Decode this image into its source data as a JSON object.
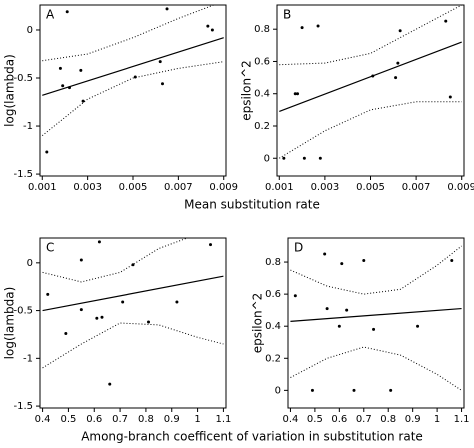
{
  "chart_data": [
    {
      "type": "scatter",
      "panel_label": "A",
      "ylabel": "log(lambda)",
      "xlabel": "Mean substitution rate",
      "x": [
        0.0012,
        0.0018,
        0.0019,
        0.0021,
        0.0022,
        0.0027,
        0.0028,
        0.0051,
        0.0062,
        0.0063,
        0.0065,
        0.0083,
        0.0085
      ],
      "values": [
        -1.27,
        -0.4,
        -0.58,
        0.19,
        -0.6,
        -0.42,
        -0.74,
        -0.49,
        -0.33,
        -0.56,
        0.22,
        0.04,
        0.0
      ],
      "lines": [
        {
          "style": "solid",
          "x": [
            0.001,
            0.009
          ],
          "values": [
            -0.68,
            -0.08
          ]
        },
        {
          "style": "dotted",
          "x": [
            0.001,
            0.003,
            0.005,
            0.007,
            0.009
          ],
          "values": [
            -0.32,
            -0.25,
            -0.08,
            0.12,
            0.3
          ]
        },
        {
          "style": "dotted",
          "x": [
            0.001,
            0.003,
            0.005,
            0.007,
            0.009
          ],
          "values": [
            -1.1,
            -0.72,
            -0.5,
            -0.4,
            -0.33
          ]
        }
      ],
      "xlim": [
        0.0009,
        0.0091
      ],
      "xticks": [
        0.001,
        0.003,
        0.005,
        0.007,
        0.009
      ],
      "ylim": [
        -1.52,
        0.26
      ],
      "yticks": [
        -1.5,
        -1,
        -0.5,
        0
      ]
    },
    {
      "type": "scatter",
      "panel_label": "B",
      "ylabel": "epsilon^2",
      "x": [
        0.0012,
        0.0017,
        0.0018,
        0.002,
        0.0021,
        0.0027,
        0.0028,
        0.0051,
        0.0061,
        0.0062,
        0.0063,
        0.0083,
        0.0085
      ],
      "values": [
        0.0,
        0.4,
        0.4,
        0.81,
        0.0,
        0.82,
        0.0,
        0.51,
        0.5,
        0.59,
        0.79,
        0.85,
        0.38
      ],
      "lines": [
        {
          "style": "solid",
          "x": [
            0.001,
            0.009
          ],
          "values": [
            0.29,
            0.72
          ]
        },
        {
          "style": "dotted",
          "x": [
            0.001,
            0.003,
            0.005,
            0.007,
            0.009
          ],
          "values": [
            0.58,
            0.59,
            0.65,
            0.8,
            0.95
          ]
        },
        {
          "style": "dotted",
          "x": [
            0.001,
            0.003,
            0.005,
            0.007,
            0.009
          ],
          "values": [
            0.0,
            0.17,
            0.3,
            0.35,
            0.35
          ]
        }
      ],
      "xlim": [
        0.0009,
        0.0091
      ],
      "xticks": [
        0.001,
        0.003,
        0.005,
        0.007,
        0.009
      ],
      "ylim": [
        -0.11,
        0.95
      ],
      "yticks": [
        0,
        0.2,
        0.4,
        0.6,
        0.8
      ]
    },
    {
      "type": "scatter",
      "panel_label": "C",
      "ylabel": "log(lambda)",
      "xlabel": "Among-branch coefficent of variation in substitution rate",
      "x": [
        0.42,
        0.49,
        0.55,
        0.55,
        0.61,
        0.62,
        0.63,
        0.66,
        0.71,
        0.75,
        0.81,
        0.92,
        1.05
      ],
      "values": [
        -0.33,
        -0.74,
        0.03,
        -0.49,
        -0.58,
        0.22,
        -0.57,
        -1.27,
        -0.41,
        -0.02,
        -0.62,
        -0.41,
        0.19
      ],
      "lines": [
        {
          "style": "solid",
          "x": [
            0.4,
            1.1
          ],
          "values": [
            -0.5,
            -0.14
          ]
        },
        {
          "style": "dotted",
          "x": [
            0.4,
            0.55,
            0.7,
            0.85,
            1.0
          ],
          "values": [
            -0.1,
            -0.2,
            -0.1,
            0.15,
            0.3
          ]
        },
        {
          "style": "dotted",
          "x": [
            0.4,
            0.55,
            0.7,
            0.85,
            1.0,
            1.1
          ],
          "values": [
            -1.1,
            -0.85,
            -0.63,
            -0.65,
            -0.78,
            -0.85
          ]
        }
      ],
      "xlim": [
        0.39,
        1.11
      ],
      "xticks": [
        0.4,
        0.5,
        0.6,
        0.7,
        0.8,
        0.9,
        1,
        1.1
      ],
      "ylim": [
        -1.52,
        0.26
      ],
      "yticks": [
        -1.5,
        -1,
        -0.5,
        0
      ]
    },
    {
      "type": "scatter",
      "panel_label": "D",
      "ylabel": "epsilon^2",
      "x": [
        0.42,
        0.49,
        0.54,
        0.55,
        0.6,
        0.61,
        0.63,
        0.66,
        0.7,
        0.74,
        0.81,
        0.92,
        1.06
      ],
      "values": [
        0.59,
        0.0,
        0.85,
        0.51,
        0.4,
        0.79,
        0.5,
        0.0,
        0.81,
        0.38,
        0.0,
        0.4,
        0.81
      ],
      "lines": [
        {
          "style": "solid",
          "x": [
            0.4,
            1.1
          ],
          "values": [
            0.43,
            0.51
          ]
        },
        {
          "style": "dotted",
          "x": [
            0.4,
            0.55,
            0.7,
            0.85,
            1.0,
            1.1
          ],
          "values": [
            0.75,
            0.65,
            0.6,
            0.63,
            0.78,
            0.9
          ]
        },
        {
          "style": "dotted",
          "x": [
            0.4,
            0.55,
            0.7,
            0.85,
            1.0,
            1.1
          ],
          "values": [
            0.08,
            0.2,
            0.27,
            0.22,
            0.1,
            0.0
          ]
        }
      ],
      "xlim": [
        0.39,
        1.11
      ],
      "xticks": [
        0.4,
        0.5,
        0.6,
        0.7,
        0.8,
        0.9,
        1,
        1.1
      ],
      "ylim": [
        -0.11,
        0.95
      ],
      "yticks": [
        0,
        0.2,
        0.4,
        0.6,
        0.8
      ]
    }
  ]
}
